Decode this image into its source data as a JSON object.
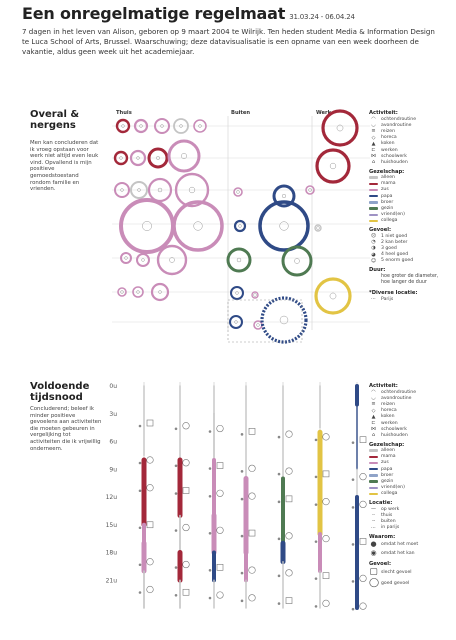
{
  "header": {
    "title": "Een onregelmatige regelmaat",
    "dates": "31.03.24 - 06.04.24",
    "intro": "7 dagen in het leven van Alison, geboren op 9 maart 2004 te Wilrijk. Ten heden student Media & Information Design te Luca School of Arts, Brussel. Waarschuwing; deze datavisualisatie is een opname van een week doorheen de vakantie, aldus geen week uit het academiejaar."
  },
  "section1": {
    "title": "Overal & nergens",
    "body": "Men kan concluderen dat ik vroeg opstaan voor werk niet altijd even leuk vind. Opvallend is mijn positieve gemoedstoestand rondom familie en vrienden.",
    "columns": [
      "Thuis",
      "Buiten",
      "Werk"
    ],
    "legend": {
      "activiteit_title": "Activiteit:",
      "activiteit": [
        "ochtendroutine",
        "avondroutine",
        "reizen",
        "horeca",
        "koken",
        "werken",
        "schoolwerk",
        "huishouden"
      ],
      "gezelschap_title": "Gezelschap:",
      "gezelschap": [
        "alleen",
        "mama",
        "zus",
        "papa",
        "broer",
        "gezin",
        "vriend(en)",
        "collega"
      ],
      "gevoel_title": "Gevoel:",
      "gevoel": [
        "1 niet goed",
        "2 kan beter",
        "3 goed",
        "4 heel goed",
        "5 enorm goed"
      ],
      "duur_title": "Duur:",
      "duur_text": "hoe groter de diameter, hoe langer de duur",
      "locatie_title": "*Diverse locatie:",
      "locatie": "Parijs"
    }
  },
  "section2": {
    "title": "Voldoende tijdsnood",
    "body": "Concluderend; beleef ik minder positieve gevoelens aan activiteiten die moeten gebeuren in vergelijking tot activiteiten die ik vrijwillig onderneem.",
    "hours": [
      "0u",
      "3u",
      "6u",
      "9u",
      "12u",
      "15u",
      "18u",
      "21u"
    ],
    "legend": {
      "activiteit_title": "Activiteit:",
      "activiteit": [
        "ochtendroutine",
        "avondroutine",
        "reizen",
        "horeca",
        "koken",
        "werken",
        "schoolwerk",
        "huishouden"
      ],
      "gezelschap_title": "Gezelschap:",
      "gezelschap": [
        "alleen",
        "mama",
        "zus",
        "papa",
        "broer",
        "gezin",
        "vriend(en)",
        "collega"
      ],
      "locatie_title": "Locatie:",
      "locatie": [
        "op werk",
        "thuis",
        "buiten",
        "in parijs"
      ],
      "waarom_title": "Waarom:",
      "waarom": [
        "omdat het moet",
        "omdat het kan"
      ],
      "gevoel_title": "Gevoel:",
      "gevoel": [
        "slecht gevoel",
        "goed gevoel"
      ]
    }
  },
  "colors": {
    "alleen": "#c4c4c4",
    "mama": "#a3283a",
    "zus": "#c98cb8",
    "papa": "#2f4a86",
    "broer": "#8fa3c8",
    "gezin": "#4f7a52",
    "vrienden": "#9e92c4",
    "collega": "#e2c444"
  }
}
